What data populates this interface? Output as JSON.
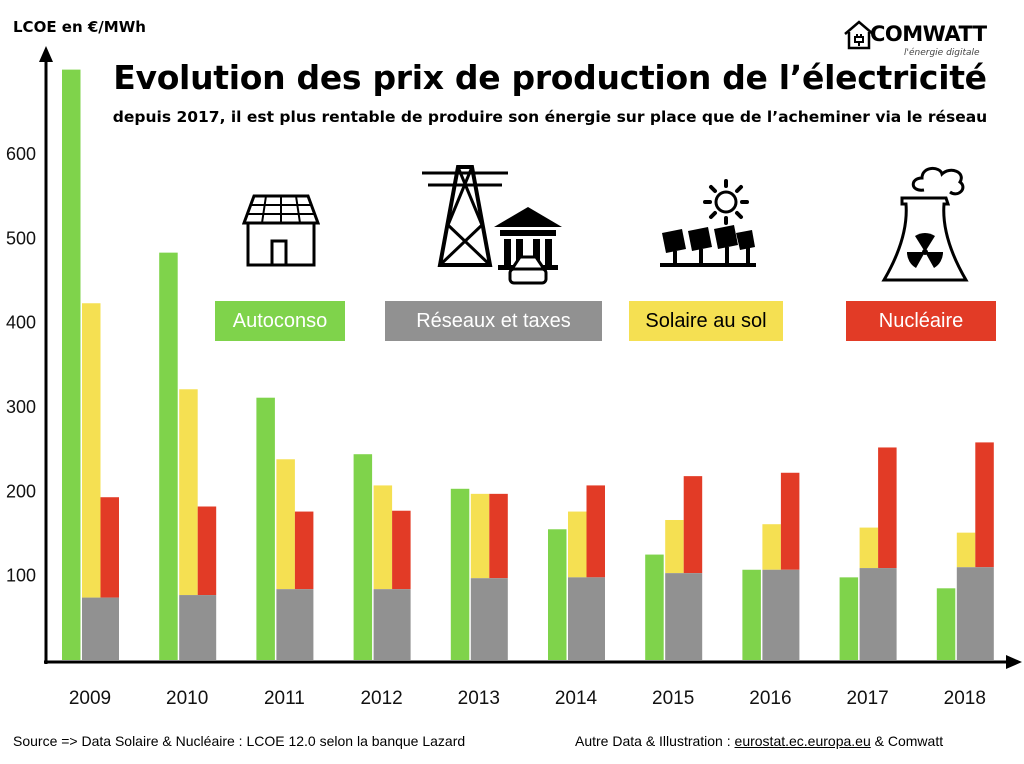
{
  "brand": {
    "name": "COMWATT",
    "tagline": "l'énergie digitale"
  },
  "title": "Evolution des prix de production de l’électricité",
  "subtitle": "depuis 2017, il est plus rentable de produire son énergie sur place que de l’acheminer via le réseau",
  "colors": {
    "autoconso": "#7fd34b",
    "reseaux": "#919191",
    "solaire": "#f5e052",
    "nucleaire": "#e23b26"
  },
  "icons": [
    "house-solar-roof-icon",
    "power-pylon-utility-icon",
    "solar-farm-icon",
    "nuclear-plant-icon"
  ],
  "source_left": "Source => Data Solaire & Nucléaire : LCOE 12.0 selon la banque Lazard",
  "source_right": {
    "prefix": "Autre Data & Illustration : ",
    "link": "eurostat.ec.europa.eu",
    "suffix": " & Comwatt"
  },
  "chart_data": {
    "type": "bar",
    "ylabel": "LCOE en €/MWh",
    "ylim": [
      0,
      700
    ],
    "yticks": [
      100,
      200,
      300,
      400,
      500,
      600
    ],
    "categories": [
      "2009",
      "2010",
      "2011",
      "2012",
      "2013",
      "2014",
      "2015",
      "2016",
      "2017",
      "2018"
    ],
    "series": [
      {
        "name": "Autoconso",
        "values": [
          700,
          483,
          311,
          244,
          203,
          155,
          125,
          107,
          98,
          85
        ]
      },
      {
        "name": "Réseaux et taxes",
        "values": [
          74,
          77,
          84,
          84,
          97,
          98,
          103,
          107,
          109,
          110
        ]
      },
      {
        "name": "Solaire au sol",
        "values": [
          423,
          321,
          238,
          207,
          197,
          176,
          166,
          161,
          157,
          151
        ]
      },
      {
        "name": "Nucléaire",
        "values": [
          193,
          182,
          176,
          177,
          197,
          207,
          218,
          222,
          252,
          258
        ]
      }
    ],
    "grid": false,
    "legend": "middle, as colored boxes"
  }
}
